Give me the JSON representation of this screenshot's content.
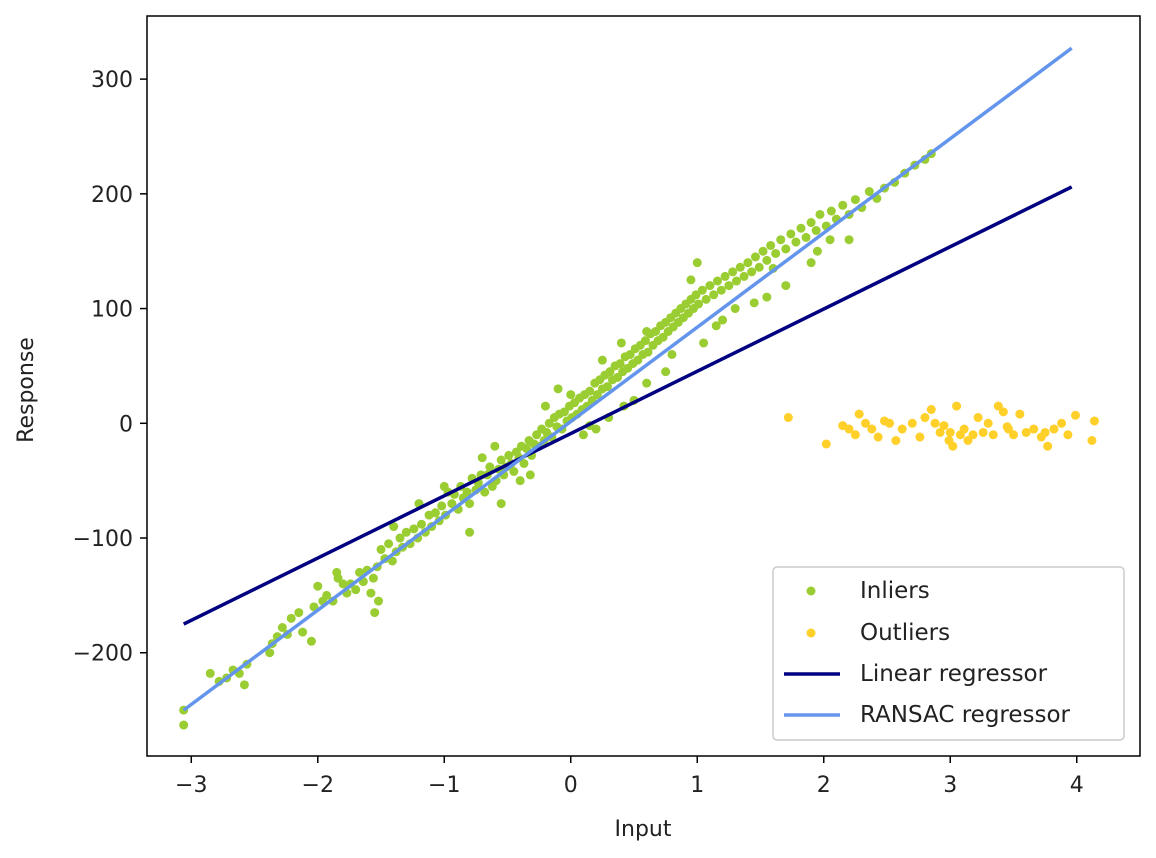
{
  "chart_data": {
    "type": "scatter",
    "xlabel": "Input",
    "ylabel": "Response",
    "xlim": [
      -3.35,
      4.5
    ],
    "ylim": [
      -290,
      355
    ],
    "xticks": [
      {
        "value": -3,
        "label": "−3"
      },
      {
        "value": -2,
        "label": "−2"
      },
      {
        "value": -1,
        "label": "−1"
      },
      {
        "value": 0,
        "label": "0"
      },
      {
        "value": 1,
        "label": "1"
      },
      {
        "value": 2,
        "label": "2"
      },
      {
        "value": 3,
        "label": "3"
      },
      {
        "value": 4,
        "label": "4"
      }
    ],
    "yticks": [
      {
        "value": -200,
        "label": "−200"
      },
      {
        "value": -100,
        "label": "−100"
      },
      {
        "value": 0,
        "label": "0"
      },
      {
        "value": 100,
        "label": "100"
      },
      {
        "value": 200,
        "label": "200"
      },
      {
        "value": 300,
        "label": "300"
      }
    ],
    "grid": false,
    "legend_position": "lower-right",
    "colors": {
      "inliers": "#9acd32",
      "outliers": "#ffd02a",
      "linear": "#000080",
      "ransac": "#6495ed",
      "axes": "#000000"
    },
    "series": [
      {
        "name": "Inliers",
        "kind": "scatter",
        "points": [
          [
            -3.06,
            -263
          ],
          [
            -3.06,
            -250
          ],
          [
            -2.85,
            -218
          ],
          [
            -2.78,
            -225
          ],
          [
            -2.72,
            -222
          ],
          [
            -2.67,
            -215
          ],
          [
            -2.62,
            -218
          ],
          [
            -2.58,
            -228
          ],
          [
            -2.56,
            -210
          ],
          [
            -2.38,
            -200
          ],
          [
            -2.36,
            -192
          ],
          [
            -2.32,
            -186
          ],
          [
            -2.28,
            -178
          ],
          [
            -2.24,
            -184
          ],
          [
            -2.21,
            -170
          ],
          [
            -2.12,
            -182
          ],
          [
            -2.05,
            -190
          ],
          [
            -2.03,
            -160
          ],
          [
            -2.0,
            -142
          ],
          [
            -1.96,
            -155
          ],
          [
            -1.93,
            -150
          ],
          [
            -1.88,
            -155
          ],
          [
            -1.84,
            -135
          ],
          [
            -1.8,
            -140
          ],
          [
            -1.77,
            -148
          ],
          [
            -1.74,
            -140
          ],
          [
            -1.7,
            -145
          ],
          [
            -1.67,
            -130
          ],
          [
            -1.64,
            -138
          ],
          [
            -1.61,
            -128
          ],
          [
            -1.58,
            -148
          ],
          [
            -1.56,
            -135
          ],
          [
            -1.53,
            -125
          ],
          [
            -1.55,
            -165
          ],
          [
            -1.52,
            -155
          ],
          [
            -1.5,
            -110
          ],
          [
            -1.47,
            -118
          ],
          [
            -1.44,
            -105
          ],
          [
            -1.41,
            -120
          ],
          [
            -1.38,
            -112
          ],
          [
            -1.35,
            -100
          ],
          [
            -1.33,
            -108
          ],
          [
            -1.3,
            -95
          ],
          [
            -1.27,
            -105
          ],
          [
            -1.24,
            -92
          ],
          [
            -1.21,
            -100
          ],
          [
            -1.18,
            -88
          ],
          [
            -1.15,
            -95
          ],
          [
            -1.12,
            -80
          ],
          [
            -1.1,
            -90
          ],
          [
            -1.07,
            -78
          ],
          [
            -1.04,
            -85
          ],
          [
            -1.02,
            -72
          ],
          [
            -0.99,
            -80
          ],
          [
            -0.97,
            -60
          ],
          [
            -0.94,
            -70
          ],
          [
            -0.92,
            -62
          ],
          [
            -0.89,
            -75
          ],
          [
            -0.87,
            -55
          ],
          [
            -0.85,
            -65
          ],
          [
            -0.82,
            -60
          ],
          [
            -0.8,
            -70
          ],
          [
            -0.78,
            -48
          ],
          [
            -0.75,
            -58
          ],
          [
            -0.73,
            -52
          ],
          [
            -0.71,
            -45
          ],
          [
            -0.68,
            -60
          ],
          [
            -0.66,
            -45
          ],
          [
            -0.64,
            -38
          ],
          [
            -0.62,
            -55
          ],
          [
            -0.59,
            -50
          ],
          [
            -0.57,
            -40
          ],
          [
            -0.55,
            -32
          ],
          [
            -0.53,
            -45
          ],
          [
            -0.51,
            -38
          ],
          [
            -0.49,
            -28
          ],
          [
            -0.47,
            -35
          ],
          [
            -0.45,
            -42
          ],
          [
            -0.43,
            -25
          ],
          [
            -0.41,
            -30
          ],
          [
            -0.39,
            -20
          ],
          [
            -0.37,
            -35
          ],
          [
            -0.35,
            -22
          ],
          [
            -0.33,
            -15
          ],
          [
            -0.31,
            -28
          ],
          [
            -0.29,
            -18
          ],
          [
            -0.27,
            -10
          ],
          [
            -0.25,
            -20
          ],
          [
            -0.23,
            -5
          ],
          [
            -0.21,
            -15
          ],
          [
            -0.19,
            -8
          ],
          [
            -0.17,
            0
          ],
          [
            -0.15,
            -12
          ],
          [
            -0.13,
            5
          ],
          [
            -0.11,
            -3
          ],
          [
            -0.09,
            8
          ],
          [
            -0.07,
            -5
          ],
          [
            -0.05,
            10
          ],
          [
            -0.03,
            2
          ],
          [
            -0.01,
            15
          ],
          [
            0.01,
            5
          ],
          [
            0.03,
            18
          ],
          [
            0.05,
            8
          ],
          [
            0.07,
            22
          ],
          [
            0.09,
            12
          ],
          [
            0.11,
            25
          ],
          [
            0.13,
            15
          ],
          [
            0.15,
            28
          ],
          [
            0.17,
            20
          ],
          [
            0.19,
            35
          ],
          [
            0.21,
            25
          ],
          [
            0.23,
            38
          ],
          [
            0.25,
            30
          ],
          [
            0.27,
            42
          ],
          [
            0.29,
            32
          ],
          [
            0.31,
            45
          ],
          [
            0.33,
            38
          ],
          [
            0.35,
            50
          ],
          [
            0.37,
            40
          ],
          [
            0.39,
            52
          ],
          [
            0.41,
            45
          ],
          [
            0.43,
            58
          ],
          [
            0.45,
            48
          ],
          [
            0.47,
            60
          ],
          [
            0.49,
            52
          ],
          [
            0.51,
            65
          ],
          [
            0.53,
            55
          ],
          [
            0.55,
            68
          ],
          [
            0.57,
            60
          ],
          [
            0.59,
            72
          ],
          [
            0.61,
            62
          ],
          [
            0.63,
            78
          ],
          [
            0.65,
            68
          ],
          [
            0.67,
            80
          ],
          [
            0.69,
            72
          ],
          [
            0.71,
            85
          ],
          [
            0.73,
            75
          ],
          [
            0.75,
            88
          ],
          [
            0.77,
            80
          ],
          [
            0.79,
            92
          ],
          [
            0.81,
            84
          ],
          [
            0.83,
            96
          ],
          [
            0.85,
            88
          ],
          [
            0.87,
            100
          ],
          [
            0.89,
            92
          ],
          [
            0.91,
            104
          ],
          [
            0.93,
            96
          ],
          [
            0.95,
            108
          ],
          [
            0.97,
            100
          ],
          [
            0.99,
            112
          ],
          [
            1.01,
            104
          ],
          [
            1.04,
            116
          ],
          [
            1.07,
            108
          ],
          [
            1.1,
            120
          ],
          [
            1.13,
            112
          ],
          [
            1.16,
            124
          ],
          [
            1.19,
            116
          ],
          [
            1.22,
            128
          ],
          [
            1.25,
            120
          ],
          [
            1.28,
            132
          ],
          [
            1.31,
            124
          ],
          [
            1.34,
            136
          ],
          [
            1.37,
            128
          ],
          [
            1.4,
            140
          ],
          [
            1.43,
            132
          ],
          [
            1.46,
            145
          ],
          [
            1.49,
            136
          ],
          [
            1.52,
            150
          ],
          [
            1.55,
            142
          ],
          [
            1.58,
            155
          ],
          [
            1.62,
            148
          ],
          [
            1.66,
            160
          ],
          [
            1.7,
            152
          ],
          [
            1.74,
            165
          ],
          [
            1.78,
            158
          ],
          [
            1.82,
            170
          ],
          [
            1.86,
            162
          ],
          [
            1.9,
            175
          ],
          [
            1.94,
            168
          ],
          [
            1.97,
            182
          ],
          [
            2.02,
            172
          ],
          [
            2.06,
            185
          ],
          [
            2.1,
            178
          ],
          [
            2.15,
            190
          ],
          [
            2.2,
            182
          ],
          [
            2.25,
            195
          ],
          [
            2.3,
            188
          ],
          [
            2.36,
            202
          ],
          [
            2.42,
            196
          ],
          [
            2.48,
            205
          ],
          [
            2.56,
            210
          ],
          [
            2.64,
            218
          ],
          [
            2.72,
            225
          ],
          [
            2.8,
            230
          ],
          [
            2.85,
            235
          ],
          [
            0.1,
            -10
          ],
          [
            0.2,
            -5
          ],
          [
            0.3,
            5
          ],
          [
            -0.2,
            15
          ],
          [
            -0.4,
            -50
          ],
          [
            -0.6,
            -20
          ],
          [
            0.6,
            35
          ],
          [
            0.8,
            60
          ],
          [
            1.05,
            70
          ],
          [
            1.2,
            90
          ],
          [
            1.45,
            105
          ],
          [
            1.7,
            120
          ],
          [
            1.95,
            150
          ],
          [
            2.2,
            160
          ],
          [
            0.0,
            25
          ],
          [
            -0.1,
            30
          ],
          [
            0.4,
            70
          ],
          [
            0.5,
            20
          ],
          [
            -0.8,
            -95
          ],
          [
            -1.0,
            -55
          ],
          [
            -1.2,
            -70
          ],
          [
            1.0,
            140
          ],
          [
            1.3,
            100
          ],
          [
            -0.55,
            -70
          ],
          [
            0.25,
            55
          ],
          [
            0.75,
            45
          ],
          [
            1.55,
            110
          ],
          [
            -1.85,
            -130
          ],
          [
            -2.15,
            -165
          ],
          [
            0.42,
            15
          ],
          [
            -0.32,
            -45
          ],
          [
            0.95,
            125
          ],
          [
            1.6,
            135
          ],
          [
            2.05,
            160
          ],
          [
            -0.7,
            -30
          ],
          [
            -1.4,
            -90
          ],
          [
            0.15,
            -2
          ],
          [
            0.6,
            80
          ],
          [
            1.15,
            85
          ],
          [
            1.9,
            140
          ]
        ]
      },
      {
        "name": "Outliers",
        "kind": "scatter",
        "points": [
          [
            1.72,
            5
          ],
          [
            2.02,
            -18
          ],
          [
            2.15,
            -2
          ],
          [
            2.2,
            -5
          ],
          [
            2.25,
            -10
          ],
          [
            2.28,
            8
          ],
          [
            2.33,
            0
          ],
          [
            2.38,
            -5
          ],
          [
            2.43,
            -12
          ],
          [
            2.48,
            2
          ],
          [
            2.52,
            0
          ],
          [
            2.57,
            -15
          ],
          [
            2.62,
            -5
          ],
          [
            2.7,
            0
          ],
          [
            2.76,
            -12
          ],
          [
            2.8,
            5
          ],
          [
            2.85,
            12
          ],
          [
            2.88,
            0
          ],
          [
            2.92,
            -8
          ],
          [
            2.95,
            -2
          ],
          [
            2.99,
            -15
          ],
          [
            3.02,
            -20
          ],
          [
            3.05,
            15
          ],
          [
            3.08,
            -10
          ],
          [
            3.11,
            -5
          ],
          [
            3.14,
            -15
          ],
          [
            3.18,
            -10
          ],
          [
            3.22,
            5
          ],
          [
            3.26,
            -8
          ],
          [
            3.3,
            0
          ],
          [
            3.34,
            -10
          ],
          [
            3.38,
            15
          ],
          [
            3.42,
            10
          ],
          [
            3.46,
            -5
          ],
          [
            3.5,
            -10
          ],
          [
            3.55,
            8
          ],
          [
            3.6,
            -8
          ],
          [
            3.66,
            -5
          ],
          [
            3.72,
            -12
          ],
          [
            3.77,
            -20
          ],
          [
            3.82,
            -5
          ],
          [
            3.88,
            0
          ],
          [
            3.93,
            -10
          ],
          [
            3.99,
            7
          ],
          [
            4.12,
            -15
          ],
          [
            4.14,
            2
          ],
          [
            3.75,
            -8
          ],
          [
            3.0,
            -8
          ],
          [
            3.45,
            -3
          ]
        ]
      },
      {
        "name": "Linear regressor",
        "kind": "line",
        "x": [
          -3.06,
          3.96
        ],
        "y": [
          -175,
          206
        ]
      },
      {
        "name": "RANSAC regressor",
        "kind": "line",
        "x": [
          -3.06,
          3.96
        ],
        "y": [
          -250,
          327
        ]
      }
    ]
  }
}
